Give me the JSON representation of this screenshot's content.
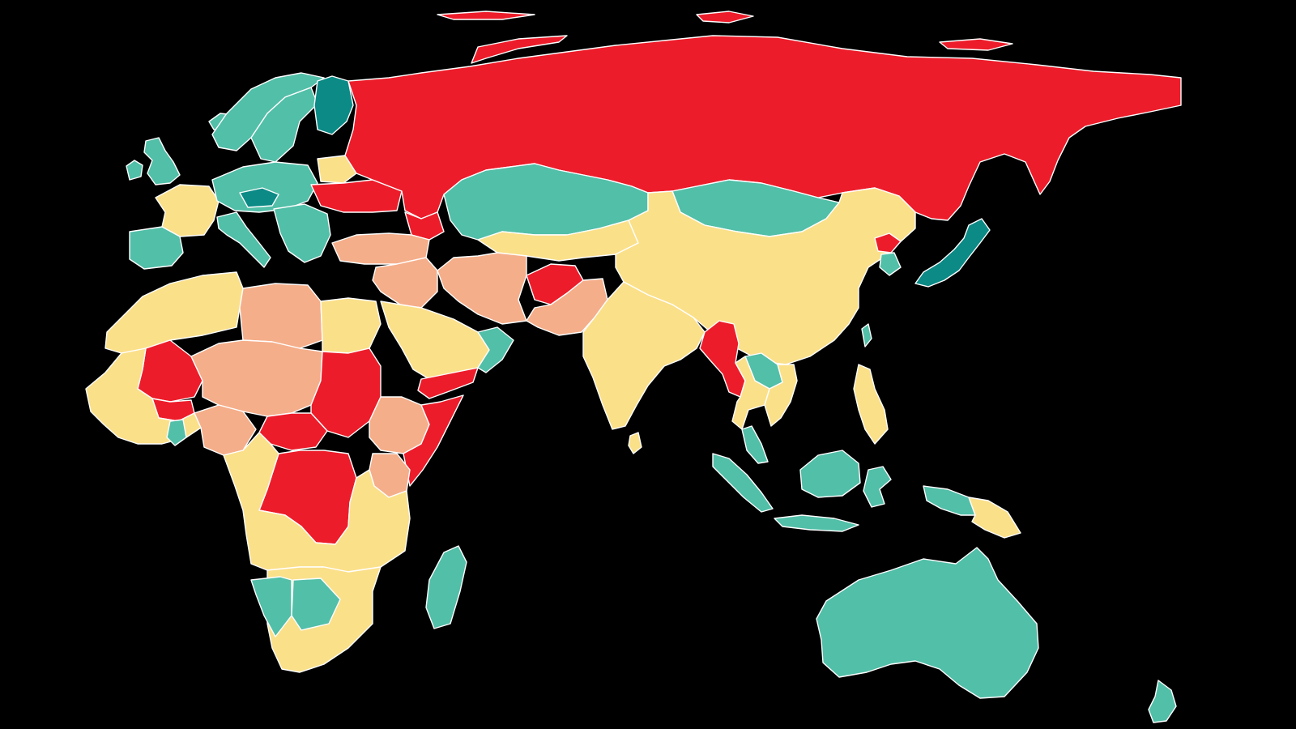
{
  "map": {
    "title": "",
    "background_color": "#000000",
    "border_color": "#ffffff",
    "categories": [
      {
        "key": "dark_teal",
        "color": "#0b8a86"
      },
      {
        "key": "teal",
        "color": "#52bfa8"
      },
      {
        "key": "yellow",
        "color": "#fbe08a"
      },
      {
        "key": "peach",
        "color": "#f5ae8a"
      },
      {
        "key": "red",
        "color": "#ed1c2a"
      }
    ],
    "regions": [
      {
        "name": "iceland",
        "category": "teal"
      },
      {
        "name": "united-kingdom",
        "category": "teal"
      },
      {
        "name": "ireland",
        "category": "teal"
      },
      {
        "name": "norway",
        "category": "teal"
      },
      {
        "name": "sweden",
        "category": "teal"
      },
      {
        "name": "finland",
        "category": "dark_teal"
      },
      {
        "name": "france",
        "category": "yellow"
      },
      {
        "name": "iberia",
        "category": "teal"
      },
      {
        "name": "central-europe",
        "category": "teal"
      },
      {
        "name": "austria",
        "category": "dark_teal"
      },
      {
        "name": "italy",
        "category": "teal"
      },
      {
        "name": "balkans",
        "category": "teal"
      },
      {
        "name": "belarus",
        "category": "yellow"
      },
      {
        "name": "ukraine",
        "category": "red"
      },
      {
        "name": "russia",
        "category": "red"
      },
      {
        "name": "kazakhstan",
        "category": "teal"
      },
      {
        "name": "mongolia",
        "category": "teal"
      },
      {
        "name": "china",
        "category": "yellow"
      },
      {
        "name": "central-asia",
        "category": "yellow"
      },
      {
        "name": "caucasus",
        "category": "red"
      },
      {
        "name": "turkey",
        "category": "peach"
      },
      {
        "name": "middle-east",
        "category": "peach"
      },
      {
        "name": "arabian-peninsula",
        "category": "yellow"
      },
      {
        "name": "yemen",
        "category": "red"
      },
      {
        "name": "oman",
        "category": "teal"
      },
      {
        "name": "iran",
        "category": "peach"
      },
      {
        "name": "afghanistan",
        "category": "red"
      },
      {
        "name": "pakistan",
        "category": "peach"
      },
      {
        "name": "india",
        "category": "yellow"
      },
      {
        "name": "sri-lanka",
        "category": "yellow"
      },
      {
        "name": "myanmar",
        "category": "red"
      },
      {
        "name": "thailand",
        "category": "yellow"
      },
      {
        "name": "laos",
        "category": "teal"
      },
      {
        "name": "vietnam",
        "category": "yellow"
      },
      {
        "name": "north-korea",
        "category": "red"
      },
      {
        "name": "south-korea",
        "category": "teal"
      },
      {
        "name": "japan",
        "category": "dark_teal"
      },
      {
        "name": "taiwan",
        "category": "teal"
      },
      {
        "name": "philippines",
        "category": "yellow"
      },
      {
        "name": "malaysia",
        "category": "teal"
      },
      {
        "name": "sumatra",
        "category": "teal"
      },
      {
        "name": "java",
        "category": "teal"
      },
      {
        "name": "borneo",
        "category": "teal"
      },
      {
        "name": "sulawesi",
        "category": "teal"
      },
      {
        "name": "new-guinea-west",
        "category": "teal"
      },
      {
        "name": "papua-new-guinea",
        "category": "yellow"
      },
      {
        "name": "australia",
        "category": "teal"
      },
      {
        "name": "new-zealand",
        "category": "teal"
      },
      {
        "name": "north-africa",
        "category": "yellow"
      },
      {
        "name": "libya",
        "category": "peach"
      },
      {
        "name": "egypt",
        "category": "yellow"
      },
      {
        "name": "mali",
        "category": "red"
      },
      {
        "name": "burkina-faso",
        "category": "red"
      },
      {
        "name": "niger-chad",
        "category": "peach"
      },
      {
        "name": "sudan",
        "category": "red"
      },
      {
        "name": "ethiopia",
        "category": "peach"
      },
      {
        "name": "somalia",
        "category": "red"
      },
      {
        "name": "west-africa",
        "category": "yellow"
      },
      {
        "name": "ghana",
        "category": "teal"
      },
      {
        "name": "nigeria",
        "category": "peach"
      },
      {
        "name": "central-african-republic",
        "category": "red"
      },
      {
        "name": "dr-congo",
        "category": "red"
      },
      {
        "name": "east-africa",
        "category": "yellow"
      },
      {
        "name": "kenya",
        "category": "peach"
      },
      {
        "name": "southern-africa",
        "category": "yellow"
      },
      {
        "name": "namibia",
        "category": "teal"
      },
      {
        "name": "botswana",
        "category": "teal"
      },
      {
        "name": "madagascar",
        "category": "teal"
      }
    ]
  }
}
